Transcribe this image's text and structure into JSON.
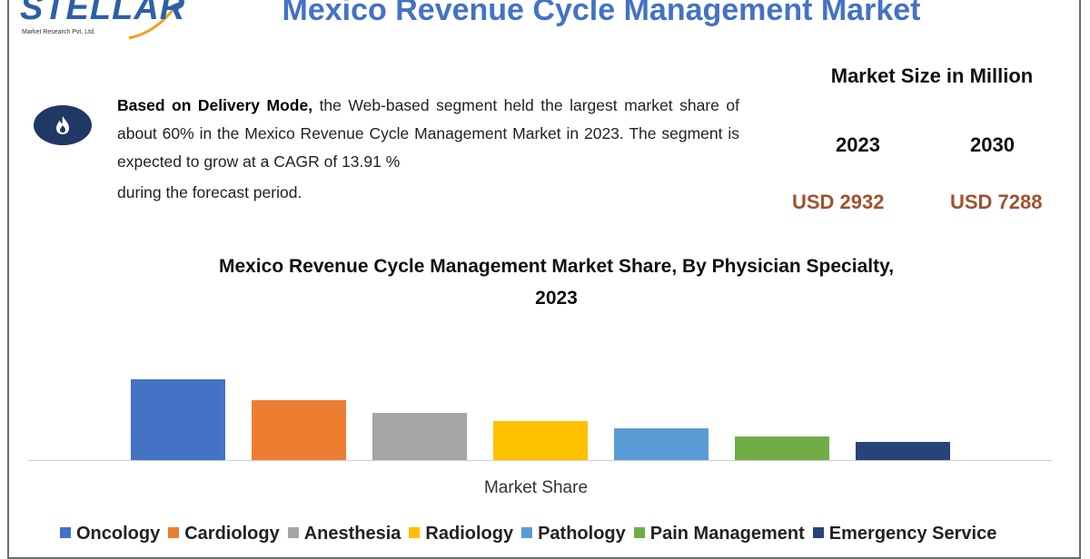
{
  "logo": {
    "word": "STELLAR",
    "subtitle": "Market Research Pvt. Ltd.",
    "color": "#2b5fa8"
  },
  "title": "Mexico Revenue Cycle Management Market",
  "description": {
    "bold_lead": "Based on Delivery Mode,",
    "text": " the Web-based segment held the largest market share of about 60% in the Mexico Revenue Cycle Management Market in 2023. The segment is expected to grow at a CAGR of 13.91 %",
    "last_line": "during the forecast period.",
    "icon": "flame-icon"
  },
  "market_size": {
    "title": "Market Size in Million",
    "year_2023": "2023",
    "year_2030": "2030",
    "value_2023": "USD 2932",
    "value_2030": "USD 7288"
  },
  "chart_data": {
    "type": "bar",
    "title_line1": "Mexico Revenue Cycle Management Market Share, By Physician Specialty,",
    "title_line2": "2023",
    "xlabel": "Market Share",
    "ylabel": "",
    "grid": false,
    "legend_position": "bottom",
    "categories": [
      "Oncology",
      "Cardiology",
      "Anesthesia",
      "Radiology",
      "Pathology",
      "Pain Management",
      "Emergency Service"
    ],
    "values": [
      89,
      66,
      52,
      43,
      35,
      26,
      20
    ],
    "ylim": [
      0,
      100
    ],
    "colors": [
      "#4472c4",
      "#ed7d31",
      "#a5a5a5",
      "#ffc000",
      "#5b9bd5",
      "#70ad47",
      "#264478"
    ]
  }
}
